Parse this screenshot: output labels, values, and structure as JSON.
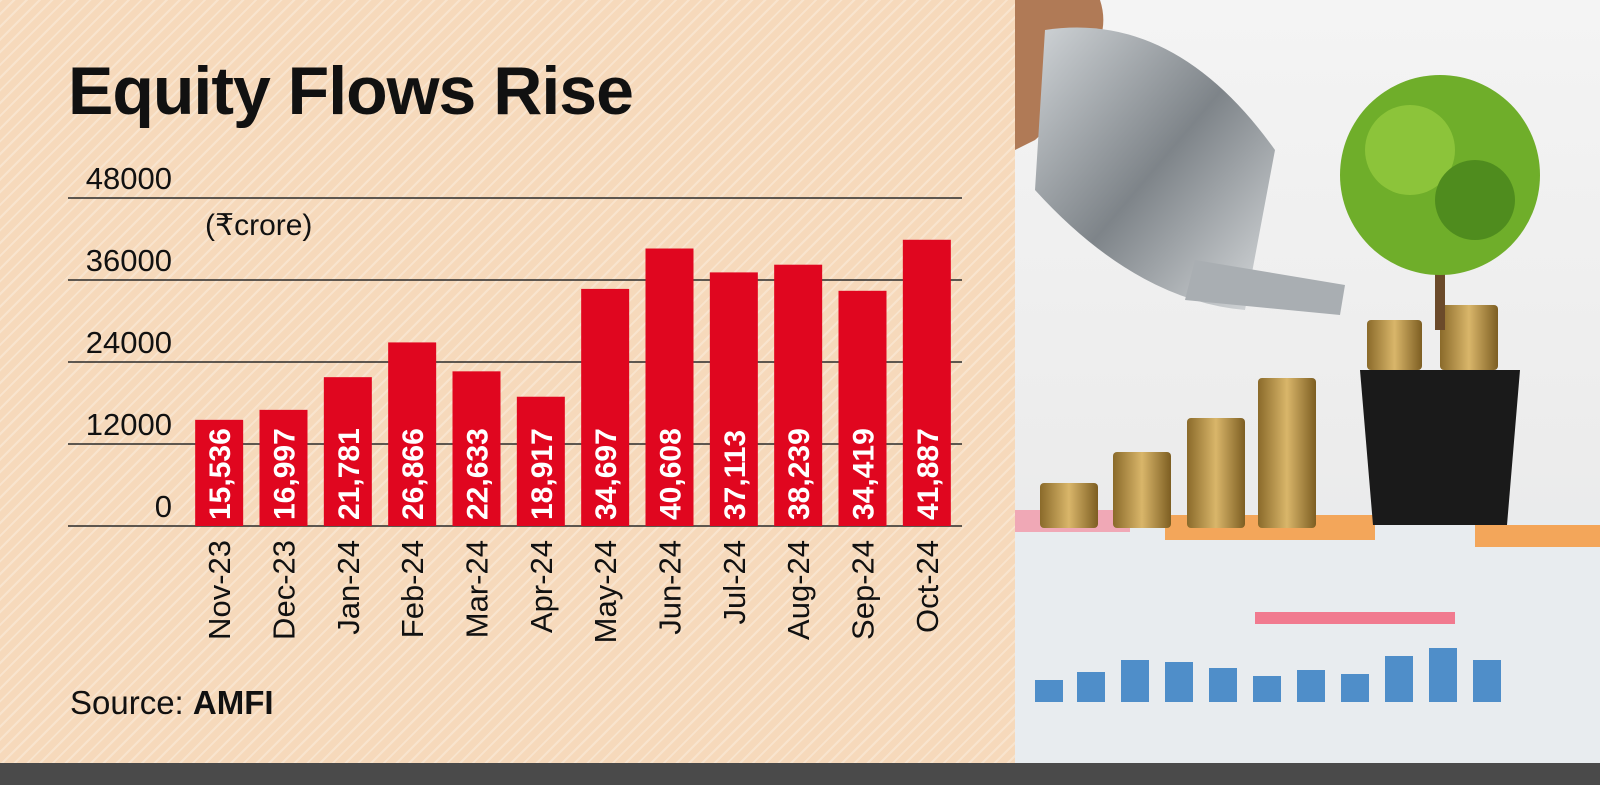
{
  "chart_data": {
    "type": "bar",
    "title": "Equity Flows Rise",
    "unit": "(₹crore)",
    "source_prefix": "Source:",
    "source_name": "AMFI",
    "categories": [
      "Nov-23",
      "Dec-23",
      "Jan-24",
      "Feb-24",
      "Mar-24",
      "Apr-24",
      "May-24",
      "Jun-24",
      "Jul-24",
      "Aug-24",
      "Sep-24",
      "Oct-24"
    ],
    "values": [
      15536,
      16997,
      21781,
      26866,
      22633,
      18917,
      34697,
      40608,
      37113,
      38239,
      34419,
      41887
    ],
    "value_labels": [
      "15,536",
      "16,997",
      "21,781",
      "26,866",
      "22,633",
      "18,917",
      "34,697",
      "40,608",
      "37,113",
      "38,239",
      "34,419",
      "41,887"
    ],
    "yticks": [
      0,
      12000,
      24000,
      36000,
      48000
    ],
    "ylim": [
      0,
      48000
    ],
    "grid": true,
    "bar_color": "#e0061f"
  },
  "photo": {
    "description_icon": "watering-can-coins-plant-icon"
  }
}
